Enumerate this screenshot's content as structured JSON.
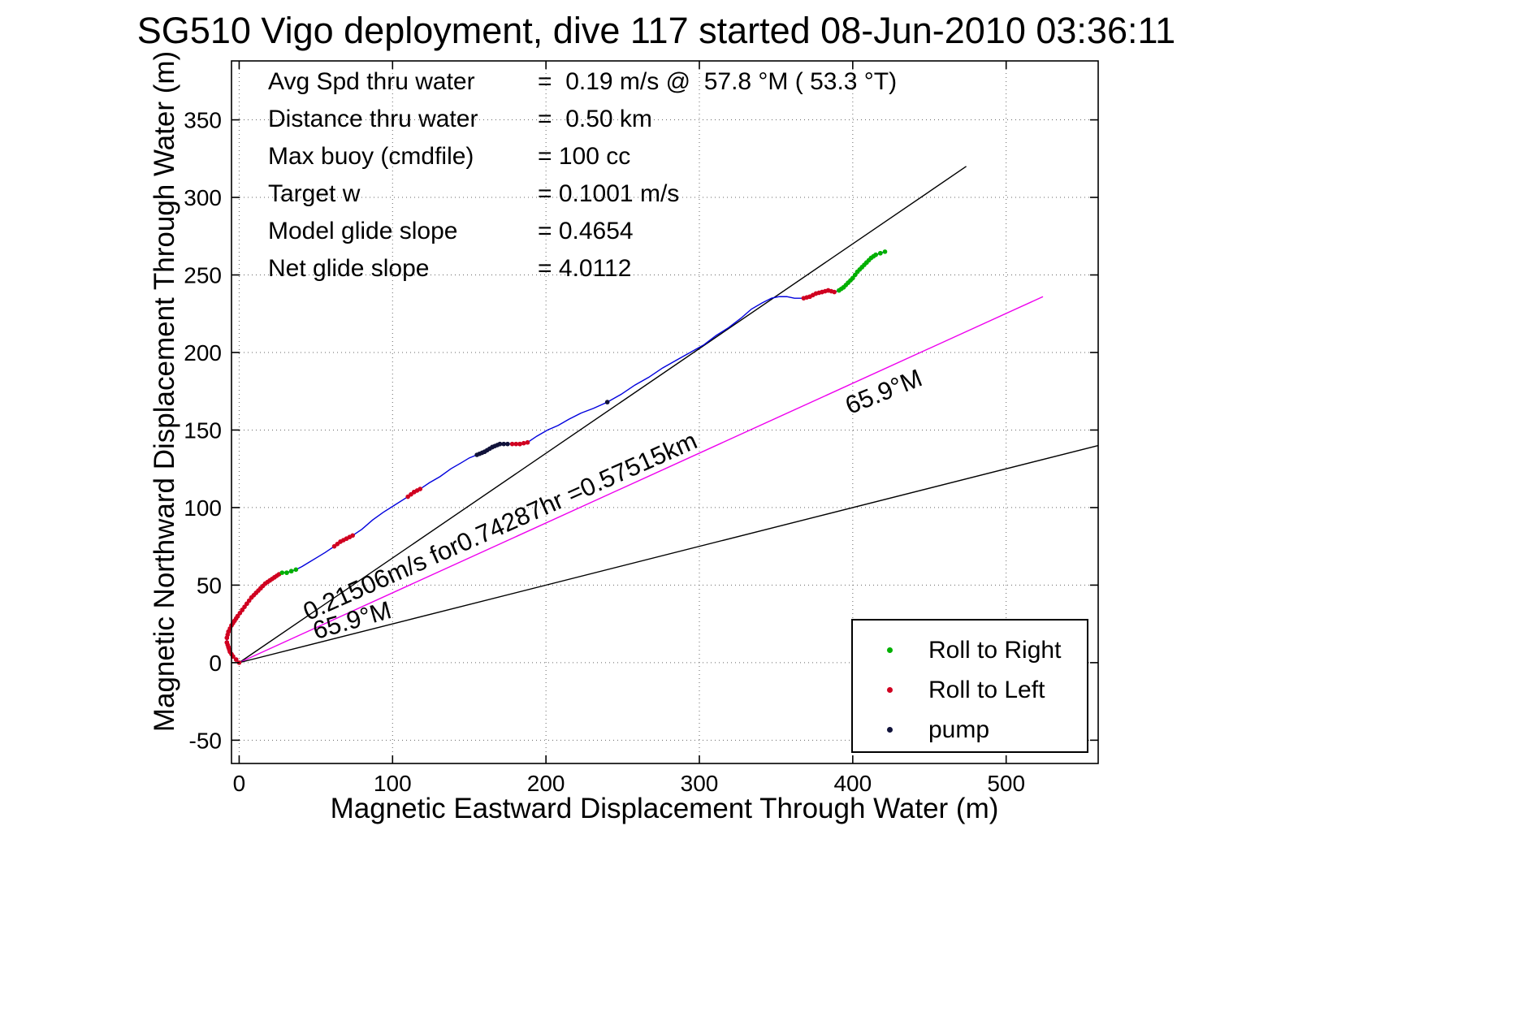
{
  "title": "SG510 Vigo deployment, dive 117 started 08-Jun-2010 03:36:11",
  "stats": [
    {
      "label": "Avg Spd thru water",
      "value": "=  0.19 m/s @  57.8 °M ( 53.3 °T)"
    },
    {
      "label": "Distance thru water",
      "value": "=  0.50 km"
    },
    {
      "label": "Max buoy (cmdfile)",
      "value": "= 100 cc"
    },
    {
      "label": "Target w",
      "value": "= 0.1001 m/s"
    },
    {
      "label": "Model glide slope",
      "value": "= 0.4654"
    },
    {
      "label": "Net glide slope",
      "value": "= 4.0112"
    }
  ],
  "chart_data": {
    "type": "line",
    "title": "SG510 Vigo deployment, dive 117 started 08-Jun-2010 03:36:11",
    "xlabel": "Magnetic Eastward Displacement Through Water (m)",
    "ylabel": "Magnetic Northward Displacement Through Water (m)",
    "xlim": [
      -5,
      560
    ],
    "ylim": [
      -65,
      388
    ],
    "xticks": [
      0,
      100,
      200,
      300,
      400,
      500
    ],
    "yticks": [
      -50,
      0,
      50,
      100,
      150,
      200,
      250,
      300,
      350
    ],
    "grid": true,
    "legend_position": "lower right",
    "track": {
      "name": "glider-track-through-water",
      "color": "#0000dd",
      "points": [
        [
          0,
          0
        ],
        [
          -2,
          2
        ],
        [
          -4,
          4
        ],
        [
          -6,
          7
        ],
        [
          -7,
          10
        ],
        [
          -8,
          13
        ],
        [
          -8,
          16
        ],
        [
          -7,
          20
        ],
        [
          -5,
          24
        ],
        [
          -3,
          27
        ],
        [
          -1,
          30
        ],
        [
          2,
          34
        ],
        [
          5,
          38
        ],
        [
          8,
          42
        ],
        [
          11,
          45
        ],
        [
          14,
          48
        ],
        [
          17,
          51
        ],
        [
          20,
          53
        ],
        [
          23,
          55
        ],
        [
          26,
          57
        ],
        [
          28,
          58
        ],
        [
          31,
          58
        ],
        [
          34,
          59
        ],
        [
          37,
          60
        ],
        [
          41,
          62
        ],
        [
          46,
          65
        ],
        [
          51,
          68
        ],
        [
          56,
          71
        ],
        [
          62,
          75
        ],
        [
          66,
          78
        ],
        [
          70,
          80
        ],
        [
          74,
          82
        ],
        [
          80,
          86
        ],
        [
          87,
          92
        ],
        [
          94,
          97
        ],
        [
          102,
          102
        ],
        [
          110,
          107
        ],
        [
          114,
          110
        ],
        [
          118,
          112
        ],
        [
          124,
          116
        ],
        [
          131,
          120
        ],
        [
          138,
          125
        ],
        [
          145,
          129
        ],
        [
          150,
          132
        ],
        [
          155,
          134
        ],
        [
          160,
          136
        ],
        [
          165,
          139
        ],
        [
          170,
          141
        ],
        [
          175,
          141
        ],
        [
          178,
          141
        ],
        [
          183,
          141
        ],
        [
          188,
          142
        ],
        [
          194,
          146
        ],
        [
          201,
          150
        ],
        [
          208,
          153
        ],
        [
          215,
          157
        ],
        [
          223,
          161
        ],
        [
          231,
          164
        ],
        [
          240,
          168
        ],
        [
          249,
          173
        ],
        [
          258,
          179
        ],
        [
          267,
          184
        ],
        [
          276,
          190
        ],
        [
          285,
          195
        ],
        [
          294,
          200
        ],
        [
          303,
          205
        ],
        [
          311,
          211
        ],
        [
          319,
          216
        ],
        [
          327,
          222
        ],
        [
          334,
          228
        ],
        [
          341,
          232
        ],
        [
          347,
          235
        ],
        [
          352,
          236
        ],
        [
          357,
          236
        ],
        [
          362,
          235
        ],
        [
          368,
          235
        ],
        [
          372,
          236
        ],
        [
          376,
          238
        ],
        [
          380,
          239
        ],
        [
          384,
          240
        ],
        [
          388,
          239
        ],
        [
          391,
          240
        ],
        [
          394,
          242
        ],
        [
          397,
          245
        ],
        [
          400,
          248
        ],
        [
          403,
          252
        ],
        [
          406,
          255
        ],
        [
          409,
          258
        ],
        [
          412,
          261
        ],
        [
          415,
          263
        ],
        [
          418,
          264
        ],
        [
          421,
          265
        ]
      ]
    },
    "marker_colors": {
      "roll_right": "#00b000",
      "roll_left": "#d00020",
      "pump": "#10123a"
    },
    "marker_runs": [
      {
        "type": "roll_left",
        "points": [
          [
            0,
            0
          ],
          [
            -2,
            2
          ],
          [
            -4,
            4
          ],
          [
            -6,
            7
          ],
          [
            -7,
            10
          ],
          [
            -8,
            13
          ],
          [
            -8,
            16
          ],
          [
            -7,
            20
          ],
          [
            -5,
            24
          ],
          [
            -3,
            27
          ],
          [
            -1,
            30
          ],
          [
            2,
            34
          ],
          [
            5,
            38
          ],
          [
            8,
            42
          ],
          [
            11,
            45
          ],
          [
            14,
            48
          ],
          [
            17,
            51
          ],
          [
            20,
            53
          ],
          [
            23,
            55
          ],
          [
            26,
            57
          ]
        ]
      },
      {
        "type": "roll_right",
        "points": [
          [
            28,
            58
          ],
          [
            31,
            58
          ],
          [
            34,
            59
          ],
          [
            37,
            60
          ]
        ]
      },
      {
        "type": "roll_left",
        "points": [
          [
            62,
            75
          ],
          [
            66,
            78
          ],
          [
            70,
            80
          ],
          [
            74,
            82
          ]
        ]
      },
      {
        "type": "roll_left",
        "points": [
          [
            110,
            107
          ],
          [
            114,
            110
          ],
          [
            118,
            112
          ]
        ]
      },
      {
        "type": "pump",
        "points": [
          [
            155,
            134
          ],
          [
            160,
            136
          ],
          [
            165,
            139
          ],
          [
            170,
            141
          ],
          [
            175,
            141
          ]
        ]
      },
      {
        "type": "roll_left",
        "points": [
          [
            178,
            141
          ],
          [
            183,
            141
          ],
          [
            188,
            142
          ]
        ]
      },
      {
        "type": "pump",
        "points": [
          [
            240,
            168
          ]
        ]
      },
      {
        "type": "roll_left",
        "points": [
          [
            368,
            235
          ],
          [
            372,
            236
          ],
          [
            376,
            238
          ],
          [
            380,
            239
          ],
          [
            384,
            240
          ],
          [
            388,
            239
          ]
        ]
      },
      {
        "type": "roll_right",
        "points": [
          [
            391,
            240
          ],
          [
            394,
            242
          ],
          [
            397,
            245
          ],
          [
            400,
            248
          ],
          [
            403,
            252
          ],
          [
            406,
            255
          ],
          [
            409,
            258
          ],
          [
            412,
            261
          ],
          [
            415,
            263
          ],
          [
            418,
            264
          ],
          [
            421,
            265
          ]
        ]
      }
    ],
    "reference_lines": [
      {
        "name": "bearing-line-upper",
        "color": "#000000",
        "from": [
          0,
          0
        ],
        "to": [
          474,
          320
        ]
      },
      {
        "name": "course-made-good-line",
        "color": "#ee00ee",
        "from": [
          0,
          0
        ],
        "to": [
          524,
          236
        ]
      },
      {
        "name": "bearing-line-lower",
        "color": "#000000",
        "from": [
          0,
          0
        ],
        "to": [
          560,
          140
        ]
      }
    ],
    "annotations": [
      {
        "text": "0.21506m/s for0.74287hr =0.57515km",
        "x": 45,
        "y": 27,
        "rot": -24,
        "size": 31
      },
      {
        "text": "65.9°M",
        "x": 398,
        "y": 160,
        "rot": -22,
        "size": 31
      },
      {
        "text": "65.9°M",
        "x": 50,
        "y": 15,
        "rot": -16,
        "size": 31
      }
    ],
    "legend": [
      {
        "label": "Roll to Right",
        "color": "#00b000"
      },
      {
        "label": "Roll to Left",
        "color": "#d00020"
      },
      {
        "label": "pump",
        "color": "#10123a"
      }
    ]
  }
}
